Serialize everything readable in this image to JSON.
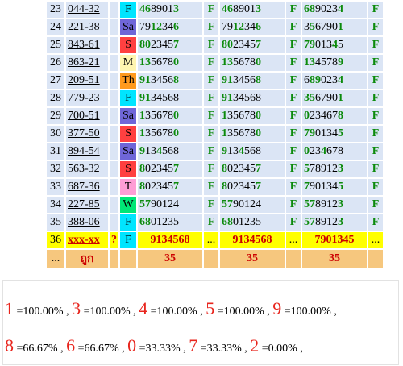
{
  "colors": {
    "cell_bg": "#dbe5f5",
    "green_digit": "#0b8a0b",
    "highlight_row": "#ffff00",
    "footer_row": "#f6c77e",
    "red": "#cc0000",
    "day_F": "#00e5ff",
    "day_Sa": "#6f66d8",
    "day_S": "#ff4040",
    "day_M": "#fff5b0",
    "day_Th": "#ff9a1e",
    "day_T": "#ff9ed6",
    "day_W": "#00e676"
  },
  "rows": [
    {
      "num": "23",
      "code": "044-32",
      "day": "F",
      "v1": [
        [
          "4"
        ],
        [
          "6"
        ],
        [
          "8"
        ],
        [
          "9"
        ],
        [
          "0"
        ],
        [
          "1"
        ],
        [
          "3"
        ]
      ],
      "f1": "F",
      "v2": "4689013",
      "f2": "F",
      "v3": "6890234",
      "f3": "F"
    },
    {
      "num": "24",
      "code": "221-38",
      "day": "Sa",
      "v1": "7912346",
      "f1": "F",
      "v2": "7912346",
      "f2": "F",
      "v3": "3567901",
      "f3": "F"
    },
    {
      "num": "25",
      "code": "843-61",
      "day": "S",
      "v1": "8023457",
      "f1": "F",
      "v2": "8023457",
      "f2": "F",
      "v3": "7901345",
      "f3": "F"
    },
    {
      "num": "26",
      "code": "863-21",
      "day": "M",
      "v1": "1356780",
      "f1": "F",
      "v2": "1356780",
      "f2": "F",
      "v3": "1345789",
      "f3": "F"
    },
    {
      "num": "27",
      "code": "209-51",
      "day": "Th",
      "v1": "9134568",
      "f1": "F",
      "v2": "9134568",
      "f2": "F",
      "v3": "6890234",
      "f3": "F"
    },
    {
      "num": "28",
      "code": "779-23",
      "day": "F",
      "v1": "9134568",
      "f1": "F",
      "v2": "9134568",
      "f2": "F",
      "v3": "3567901",
      "f3": "F"
    },
    {
      "num": "29",
      "code": "700-51",
      "day": "Sa",
      "v1": "1356780",
      "f1": "F",
      "v2": "1356780",
      "f2": "F",
      "v3": "0234678",
      "f3": "F"
    },
    {
      "num": "30",
      "code": "377-50",
      "day": "S",
      "v1": "1356780",
      "f1": "F",
      "v2": "1356780",
      "f2": "F",
      "v3": "7901345",
      "f3": "F"
    },
    {
      "num": "31",
      "code": "894-54",
      "day": "Sa",
      "v1": "9134568",
      "f1": "F",
      "v2": "9134568",
      "f2": "F",
      "v3": "0234678",
      "f3": "F"
    },
    {
      "num": "32",
      "code": "563-32",
      "day": "S",
      "v1": "8023457",
      "f1": "F",
      "v2": "8023457",
      "f2": "F",
      "v3": "5789123",
      "f3": "F"
    },
    {
      "num": "33",
      "code": "687-36",
      "day": "T",
      "v1": "8023457",
      "f1": "F",
      "v2": "8023457",
      "f2": "F",
      "v3": "7901345",
      "f3": "F"
    },
    {
      "num": "34",
      "code": "227-85",
      "day": "W",
      "v1": "5790124",
      "f1": "F",
      "v2": "5790124",
      "f2": "F",
      "v3": "5789123",
      "f3": "F"
    },
    {
      "num": "35",
      "code": "388-06",
      "day": "F",
      "v1": "6801235",
      "f1": "F",
      "v2": "6801235",
      "f2": "F",
      "v3": "5789123",
      "f3": "F"
    }
  ],
  "green_positions": [
    [
      [
        0,
        1,
        6
      ],
      [
        0,
        1,
        6
      ],
      [
        0,
        1,
        6
      ]
    ],
    [
      [
        2,
        3,
        6
      ],
      [
        2,
        3,
        6
      ],
      [
        1,
        6
      ]
    ],
    [
      [
        0,
        1,
        6
      ],
      [
        0,
        1,
        6
      ],
      [
        0,
        1,
        5
      ]
    ],
    [
      [
        0,
        1,
        6
      ],
      [
        0,
        1,
        6
      ],
      [
        0,
        1,
        6
      ]
    ],
    [
      [
        0,
        1,
        6
      ],
      [
        0,
        1,
        6
      ],
      [
        1,
        2,
        6
      ]
    ],
    [
      [
        0,
        1
      ],
      [
        0,
        1
      ],
      [
        0,
        1,
        6
      ]
    ],
    [
      [
        0,
        6
      ],
      [
        0,
        6
      ],
      [
        0,
        6
      ]
    ],
    [
      [
        0,
        6
      ],
      [
        0,
        6
      ],
      [
        0,
        1,
        6
      ]
    ],
    [
      [
        0,
        3
      ],
      [
        0,
        3
      ],
      [
        0,
        3
      ]
    ],
    [
      [
        0,
        6
      ],
      [
        0,
        6
      ],
      [
        0,
        6
      ]
    ],
    [
      [
        0,
        6
      ],
      [
        0,
        6
      ],
      [
        0,
        6
      ]
    ],
    [
      [
        0,
        1
      ],
      [
        0,
        1
      ],
      [
        0,
        1,
        6
      ]
    ],
    [
      [
        0,
        1
      ],
      [
        0,
        1
      ],
      [
        0,
        1,
        6
      ]
    ]
  ],
  "highlight_row": {
    "num": "36",
    "code": "xxx-xx",
    "q": "?",
    "day": "F",
    "v1": "9134568",
    "d1": "...",
    "v2": "9134568",
    "d2": "...",
    "v3": "7901345",
    "d3": "..."
  },
  "footer_row": {
    "num": "...",
    "label": "ถูก",
    "c1": "35",
    "c2": "35",
    "c3": "35"
  },
  "stats_line1": [
    {
      "digit": "1",
      "pct": " =100.00%"
    },
    {
      "digit": "3",
      "pct": " =100.00%"
    },
    {
      "digit": "4",
      "pct": " =100.00%"
    },
    {
      "digit": "5",
      "pct": " =100.00%"
    },
    {
      "digit": "9",
      "pct": " =100.00%"
    }
  ],
  "stats_line2": [
    {
      "digit": "8",
      "pct": " =66.67%"
    },
    {
      "digit": "6",
      "pct": " =66.67%"
    },
    {
      "digit": "0",
      "pct": " =33.33%"
    },
    {
      "digit": "7",
      "pct": " =33.33%"
    },
    {
      "digit": "2",
      "pct": " =0.00%"
    }
  ]
}
